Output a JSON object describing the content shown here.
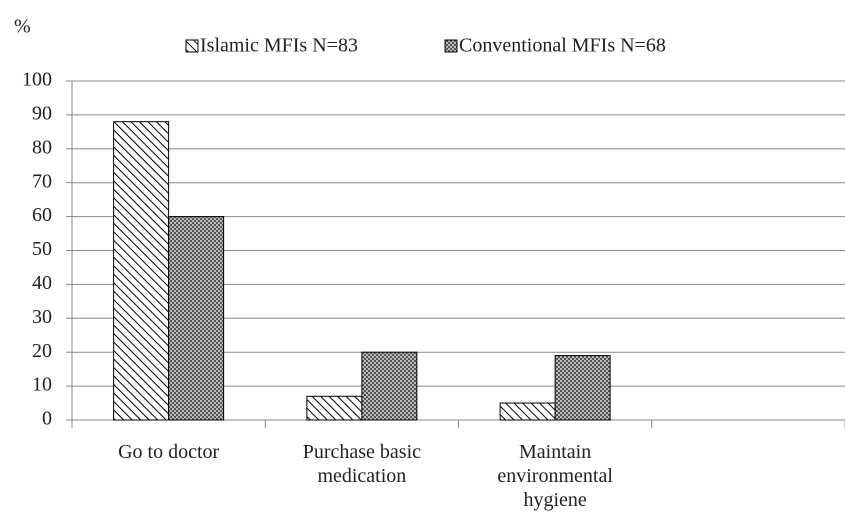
{
  "chart_data": {
    "type": "bar",
    "y_label": "%",
    "categories": [
      "Go to doctor",
      "Purchase basic medication",
      "Maintain environmental hygiene",
      null
    ],
    "series": [
      {
        "name": "Islamic MFIs N=83",
        "color": "#000000",
        "pattern": "hatch",
        "values": [
          88,
          7,
          5,
          null
        ]
      },
      {
        "name": "Conventional MFIs N=68",
        "color": "#000000",
        "pattern": "checker",
        "values": [
          60,
          20,
          19,
          null
        ]
      }
    ],
    "ylim": [
      0,
      100
    ],
    "yticks": [
      0,
      10,
      20,
      30,
      40,
      50,
      60,
      70,
      80,
      90,
      100
    ],
    "grid": true
  }
}
